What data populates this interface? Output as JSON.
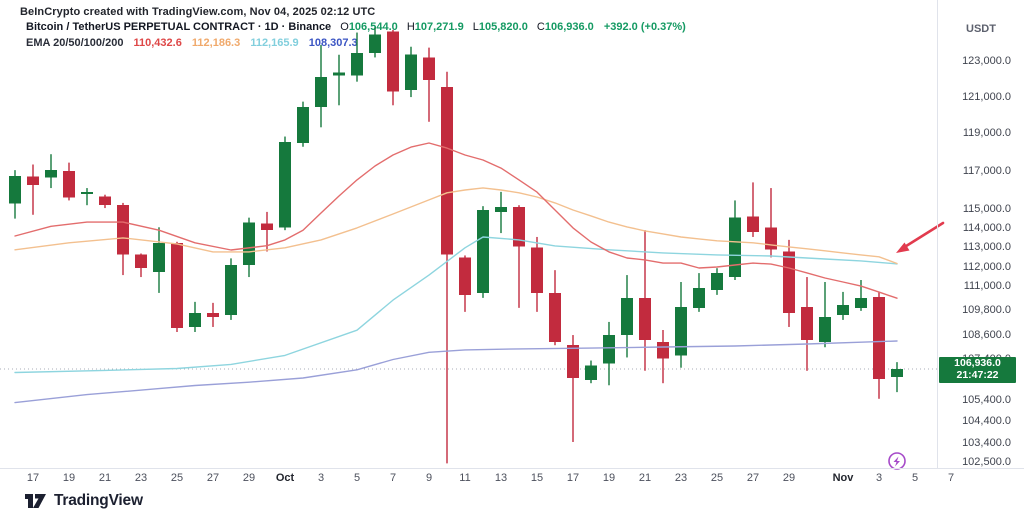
{
  "attribution": "BeInCrypto created with TradingView.com, Nov 04, 2025 02:12 UTC",
  "symbol_line": {
    "title": "Bitcoin / TetherUS PERPETUAL CONTRACT · 1D · Binance",
    "o_label": "O",
    "o_value": "106,544.0",
    "h_label": "H",
    "h_value": "107,271.9",
    "l_label": "L",
    "l_value": "105,820.0",
    "c_label": "C",
    "c_value": "106,936.0",
    "change": "+392.0 (+0.37%)",
    "value_color": "#159a63"
  },
  "ema_legend": {
    "label": "EMA 20/50/100/200",
    "values": [
      {
        "text": "110,432.6",
        "color": "#de4747"
      },
      {
        "text": "112,186.3",
        "color": "#f0a96b"
      },
      {
        "text": "112,165.9",
        "color": "#82cfdd"
      },
      {
        "text": "108,307.3",
        "color": "#3b55c3"
      }
    ]
  },
  "price_axis": {
    "currency": "USDT",
    "labels": [
      {
        "text": "123,000.0",
        "value": 123000
      },
      {
        "text": "121,000.0",
        "value": 121000
      },
      {
        "text": "119,000.0",
        "value": 119000
      },
      {
        "text": "117,000.0",
        "value": 117000
      },
      {
        "text": "115,000.0",
        "value": 115000
      },
      {
        "text": "114,000.0",
        "value": 114000
      },
      {
        "text": "113,000.0",
        "value": 113000
      },
      {
        "text": "112,000.0",
        "value": 112000
      },
      {
        "text": "111,000.0",
        "value": 111000
      },
      {
        "text": "109,800.0",
        "value": 109800
      },
      {
        "text": "108,600.0",
        "value": 108600
      },
      {
        "text": "107,400.0",
        "value": 107400
      },
      {
        "text": "105,400.0",
        "value": 105400
      },
      {
        "text": "104,400.0",
        "value": 104400
      },
      {
        "text": "103,400.0",
        "value": 103400
      },
      {
        "text": "102,500.0",
        "value": 102500
      }
    ],
    "badge": {
      "price": "106,936.0",
      "countdown": "21:47:22",
      "bg_color": "#15793d"
    }
  },
  "time_axis": {
    "ticks": [
      {
        "label": "17",
        "index": 1
      },
      {
        "label": "19",
        "index": 3
      },
      {
        "label": "21",
        "index": 5
      },
      {
        "label": "23",
        "index": 7
      },
      {
        "label": "25",
        "index": 9
      },
      {
        "label": "27",
        "index": 11
      },
      {
        "label": "29",
        "index": 13
      },
      {
        "label": "Oct",
        "index": 15,
        "bold": true
      },
      {
        "label": "3",
        "index": 17
      },
      {
        "label": "5",
        "index": 19
      },
      {
        "label": "7",
        "index": 21
      },
      {
        "label": "9",
        "index": 23
      },
      {
        "label": "11",
        "index": 25
      },
      {
        "label": "13",
        "index": 27
      },
      {
        "label": "15",
        "index": 29
      },
      {
        "label": "17",
        "index": 31
      },
      {
        "label": "19",
        "index": 33
      },
      {
        "label": "21",
        "index": 35
      },
      {
        "label": "23",
        "index": 37
      },
      {
        "label": "25",
        "index": 39
      },
      {
        "label": "27",
        "index": 41
      },
      {
        "label": "29",
        "index": 43
      },
      {
        "label": "Nov",
        "index": 46,
        "bold": true
      },
      {
        "label": "3",
        "index": 48
      },
      {
        "label": "5",
        "index": 50
      },
      {
        "label": "7",
        "index": 52
      }
    ]
  },
  "chart_data": {
    "type": "candlestick",
    "title": "Bitcoin / TetherUS PERPETUAL CONTRACT",
    "timeframe": "1D",
    "exchange": "Binance",
    "y_scale": "log",
    "ylim": [
      102500,
      125000
    ],
    "up_color": "#15793d",
    "down_color": "#c22b3e",
    "current_price": 106936.0,
    "current_price_line": true,
    "candles_legend": [
      "date",
      "open",
      "high",
      "low",
      "close"
    ],
    "candles": [
      [
        "Sep 16",
        115300,
        117050,
        114500,
        116750
      ],
      [
        "Sep 17",
        116700,
        117350,
        114700,
        116250
      ],
      [
        "Sep 18",
        116650,
        117900,
        116100,
        117050
      ],
      [
        "Sep 19",
        117000,
        117450,
        115450,
        115600
      ],
      [
        "Sep 20",
        115800,
        116100,
        115200,
        115900
      ],
      [
        "Sep 21",
        115650,
        115750,
        115050,
        115200
      ],
      [
        "Sep 22",
        115200,
        115320,
        111600,
        112650
      ],
      [
        "Sep 23",
        112650,
        112700,
        111500,
        111950
      ],
      [
        "Sep 24",
        111750,
        114050,
        110700,
        113250
      ],
      [
        "Sep 25",
        113250,
        113300,
        108750,
        108950
      ],
      [
        "Sep 26",
        109000,
        110250,
        108750,
        109700
      ],
      [
        "Sep 27",
        109700,
        110200,
        109000,
        109500
      ],
      [
        "Sep 28",
        109600,
        112450,
        109350,
        112100
      ],
      [
        "Sep 29",
        112100,
        114550,
        111500,
        114300
      ],
      [
        "Sep 30",
        114250,
        114850,
        112800,
        113900
      ],
      [
        "Oct 1",
        114050,
        118850,
        113900,
        118550
      ],
      [
        "Oct 2",
        118500,
        120750,
        118300,
        120450
      ],
      [
        "Oct 3",
        120450,
        123900,
        119350,
        122100
      ],
      [
        "Oct 4",
        122200,
        123350,
        120550,
        122350
      ],
      [
        "Oct 5",
        122200,
        124600,
        121850,
        123450
      ],
      [
        "Oct 6",
        123450,
        124900,
        123200,
        124500
      ],
      [
        "Oct 7",
        124650,
        124750,
        120550,
        121300
      ],
      [
        "Oct 8",
        121400,
        123800,
        121000,
        123350
      ],
      [
        "Oct 9",
        123200,
        123750,
        119650,
        121950
      ],
      [
        "Oct 10",
        121550,
        122400,
        102450,
        112650
      ],
      [
        "Oct 11",
        112500,
        112600,
        109750,
        110600
      ],
      [
        "Oct 12",
        110700,
        115150,
        110450,
        114950
      ],
      [
        "Oct 13",
        114850,
        115900,
        113750,
        115100
      ],
      [
        "Oct 14",
        115100,
        115200,
        109950,
        113050
      ],
      [
        "Oct 15",
        113000,
        113550,
        109750,
        110700
      ],
      [
        "Oct 16",
        110700,
        111850,
        108100,
        108250
      ],
      [
        "Oct 17",
        108100,
        108600,
        103450,
        106500
      ],
      [
        "Oct 18",
        106400,
        107350,
        106250,
        107100
      ],
      [
        "Oct 19",
        107200,
        109250,
        106150,
        108600
      ],
      [
        "Oct 20",
        108600,
        111600,
        107500,
        110450
      ],
      [
        "Oct 21",
        110450,
        113900,
        106850,
        108350
      ],
      [
        "Oct 22",
        108250,
        108850,
        106250,
        107450
      ],
      [
        "Oct 23",
        107600,
        111250,
        107000,
        110000
      ],
      [
        "Oct 24",
        109950,
        111700,
        109750,
        110950
      ],
      [
        "Oct 25",
        110850,
        111950,
        110600,
        111700
      ],
      [
        "Oct 26",
        111500,
        115450,
        111350,
        114550
      ],
      [
        "Oct 27",
        114600,
        116400,
        113550,
        113800
      ],
      [
        "Oct 28",
        114050,
        116100,
        112500,
        112900
      ],
      [
        "Oct 29",
        112800,
        113400,
        109000,
        109700
      ],
      [
        "Oct 30",
        110000,
        111500,
        106850,
        108350
      ],
      [
        "Oct 31",
        108250,
        111250,
        108000,
        109500
      ],
      [
        "Nov 1",
        109600,
        110750,
        109350,
        110100
      ],
      [
        "Nov 2",
        109950,
        111350,
        109800,
        110450
      ],
      [
        "Nov 3",
        110500,
        110750,
        105500,
        106450
      ],
      [
        "Nov 4",
        106544,
        107271.9,
        105820,
        106936
      ]
    ],
    "emas": [
      {
        "period": 200,
        "color": "#9aa0d8",
        "last_value": 108307.3,
        "points": [
          [
            0,
            105320
          ],
          [
            4,
            105700
          ],
          [
            8,
            105990
          ],
          [
            10,
            106140
          ],
          [
            13,
            106300
          ],
          [
            16,
            106500
          ],
          [
            19,
            106900
          ],
          [
            21,
            107400
          ],
          [
            23,
            107750
          ],
          [
            25,
            107870
          ],
          [
            28,
            107920
          ],
          [
            32,
            107960
          ],
          [
            36,
            108010
          ],
          [
            40,
            108060
          ],
          [
            44,
            108160
          ],
          [
            47,
            108250
          ],
          [
            49,
            108307
          ]
        ]
      },
      {
        "period": 100,
        "color": "#8ed5df",
        "last_value": 112165.9,
        "points": [
          [
            0,
            106770
          ],
          [
            5,
            106870
          ],
          [
            9,
            106960
          ],
          [
            12,
            107160
          ],
          [
            15,
            107600
          ],
          [
            19,
            108840
          ],
          [
            21,
            110340
          ],
          [
            23,
            111600
          ],
          [
            25,
            112990
          ],
          [
            26,
            113550
          ],
          [
            28,
            113400
          ],
          [
            30,
            113090
          ],
          [
            33,
            112890
          ],
          [
            36,
            112730
          ],
          [
            39,
            112630
          ],
          [
            42,
            112570
          ],
          [
            45,
            112420
          ],
          [
            47,
            112320
          ],
          [
            49,
            112166
          ]
        ]
      },
      {
        "period": 50,
        "color": "#f3c08f",
        "last_value": 112186.3,
        "points": [
          [
            0,
            112890
          ],
          [
            3,
            113250
          ],
          [
            6,
            113500
          ],
          [
            9,
            113190
          ],
          [
            11,
            112780
          ],
          [
            13,
            112780
          ],
          [
            15,
            112990
          ],
          [
            17,
            113400
          ],
          [
            19,
            114020
          ],
          [
            21,
            114740
          ],
          [
            23,
            115480
          ],
          [
            24,
            115850
          ],
          [
            25,
            116000
          ],
          [
            26,
            116110
          ],
          [
            27,
            116000
          ],
          [
            28,
            115850
          ],
          [
            29,
            115630
          ],
          [
            30,
            115320
          ],
          [
            31,
            114950
          ],
          [
            32,
            114640
          ],
          [
            33,
            114320
          ],
          [
            34,
            114070
          ],
          [
            35,
            113860
          ],
          [
            36,
            113710
          ],
          [
            37,
            113550
          ],
          [
            38,
            113450
          ],
          [
            39,
            113350
          ],
          [
            40,
            113300
          ],
          [
            41,
            113250
          ],
          [
            42,
            113140
          ],
          [
            43,
            113040
          ],
          [
            44,
            112940
          ],
          [
            45,
            112840
          ],
          [
            46,
            112730
          ],
          [
            47,
            112630
          ],
          [
            48,
            112530
          ],
          [
            49,
            112186
          ]
        ]
      },
      {
        "period": 20,
        "color": "#e36d6d",
        "last_value": 110432.6,
        "points": [
          [
            0,
            113600
          ],
          [
            2,
            114100
          ],
          [
            4,
            114320
          ],
          [
            6,
            114320
          ],
          [
            8,
            113900
          ],
          [
            10,
            113250
          ],
          [
            12,
            112880
          ],
          [
            14,
            113100
          ],
          [
            15,
            113400
          ],
          [
            16,
            113900
          ],
          [
            17,
            114790
          ],
          [
            18,
            115680
          ],
          [
            19,
            116530
          ],
          [
            20,
            117270
          ],
          [
            21,
            117860
          ],
          [
            22,
            118280
          ],
          [
            23,
            118500
          ],
          [
            24,
            118230
          ],
          [
            25,
            117860
          ],
          [
            26,
            117590
          ],
          [
            27,
            117160
          ],
          [
            28,
            116530
          ],
          [
            29,
            115890
          ],
          [
            30,
            114950
          ],
          [
            31,
            114020
          ],
          [
            32,
            113290
          ],
          [
            33,
            112780
          ],
          [
            34,
            112470
          ],
          [
            35,
            112370
          ],
          [
            36,
            112210
          ],
          [
            37,
            112210
          ],
          [
            38,
            111960
          ],
          [
            39,
            112010
          ],
          [
            40,
            112110
          ],
          [
            41,
            112210
          ],
          [
            42,
            112160
          ],
          [
            43,
            111960
          ],
          [
            44,
            111710
          ],
          [
            45,
            111450
          ],
          [
            46,
            111250
          ],
          [
            47,
            111040
          ],
          [
            48,
            110740
          ],
          [
            49,
            110433
          ]
        ]
      }
    ],
    "annotations": [
      {
        "type": "arrow",
        "color": "#e23b4e",
        "points_at": "EMA 50/100 convergence near last candle"
      },
      {
        "type": "lightning-badge",
        "color": "#a64ac9",
        "position": "below Nov 4 on time axis"
      }
    ]
  },
  "logo": {
    "text": "TradingView"
  }
}
